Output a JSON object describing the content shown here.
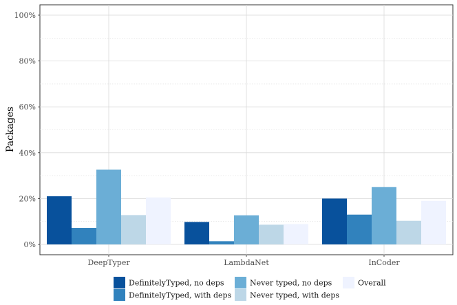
{
  "chart_data": {
    "type": "bar",
    "title": "",
    "xlabel": "",
    "ylabel": "Packages",
    "ylim": [
      -4.5,
      104.5
    ],
    "yticks": [
      "0%",
      "20%",
      "40%",
      "60%",
      "80%",
      "100%"
    ],
    "ytick_values": [
      0,
      20,
      40,
      60,
      80,
      100
    ],
    "categories": [
      "DeepTyper",
      "LambdaNet",
      "InCoder"
    ],
    "series": [
      {
        "name": "DefinitelyTyped, no deps",
        "color": "#08519c",
        "values": [
          21,
          9.8,
          20
        ]
      },
      {
        "name": "DefinitelyTyped, with deps",
        "color": "#3182bd",
        "values": [
          7.2,
          1.4,
          13
        ]
      },
      {
        "name": "Never typed, no deps",
        "color": "#6baed6",
        "values": [
          32.6,
          12.7,
          25
        ]
      },
      {
        "name": "Never typed, with deps",
        "color": "#bdd7e7",
        "values": [
          12.8,
          8.6,
          10.3
        ]
      },
      {
        "name": "Overall",
        "color": "#eff3ff",
        "values": [
          20.5,
          8.9,
          19
        ]
      }
    ],
    "legend": {
      "position": "bottom"
    },
    "grid": true
  }
}
